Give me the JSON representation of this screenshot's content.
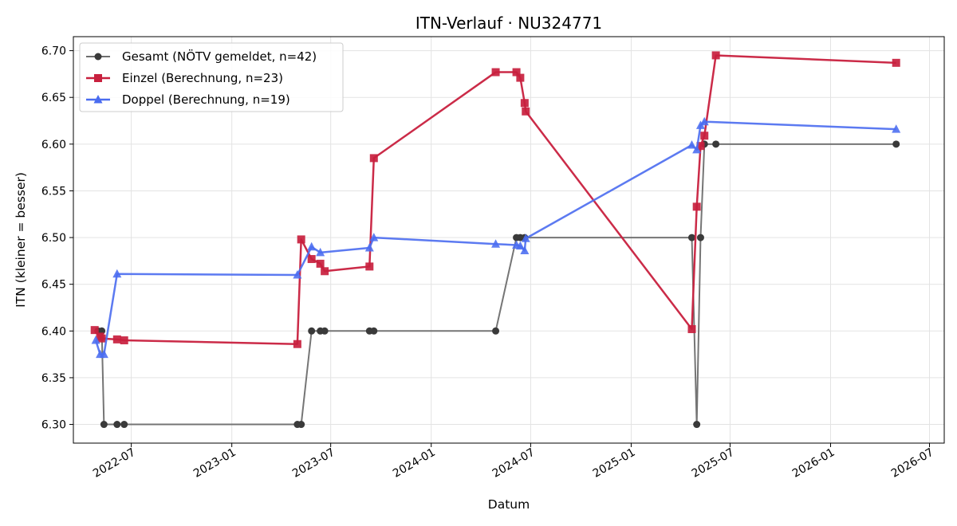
{
  "chart_data": {
    "type": "line",
    "title": "ITN-Verlauf · NU324771",
    "xlabel": "Datum",
    "ylabel": "ITN  (kleiner = besser)",
    "x_type": "date",
    "xlim": [
      "2022-03-17",
      "2026-07-28"
    ],
    "ylim": [
      6.28,
      6.715
    ],
    "x_ticks": [
      {
        "date": "2022-07-01",
        "label": "2022-07"
      },
      {
        "date": "2023-01-01",
        "label": "2023-01"
      },
      {
        "date": "2023-07-01",
        "label": "2023-07"
      },
      {
        "date": "2024-01-01",
        "label": "2024-01"
      },
      {
        "date": "2024-07-01",
        "label": "2024-07"
      },
      {
        "date": "2025-01-01",
        "label": "2025-01"
      },
      {
        "date": "2025-07-01",
        "label": "2025-07"
      },
      {
        "date": "2026-01-01",
        "label": "2026-01"
      },
      {
        "date": "2026-07-01",
        "label": "2026-07"
      }
    ],
    "y_ticks": [
      6.3,
      6.35,
      6.4,
      6.45,
      6.5,
      6.55,
      6.6,
      6.65,
      6.7
    ],
    "grid": true,
    "legend_position": "top-left",
    "series": [
      {
        "name": "Gesamt (NÖTV gemeldet, n=42)",
        "color": "#6e6e6e",
        "marker": "circle",
        "points": [
          [
            "2022-05-01",
            6.4
          ],
          [
            "2022-05-08",
            6.4
          ],
          [
            "2022-05-12",
            6.3
          ],
          [
            "2022-06-05",
            6.3
          ],
          [
            "2022-06-18",
            6.3
          ],
          [
            "2023-05-01",
            6.3
          ],
          [
            "2023-05-08",
            6.3
          ],
          [
            "2023-05-27",
            6.4
          ],
          [
            "2023-06-12",
            6.4
          ],
          [
            "2023-06-20",
            6.4
          ],
          [
            "2023-09-10",
            6.4
          ],
          [
            "2023-09-18",
            6.4
          ],
          [
            "2024-04-28",
            6.4
          ],
          [
            "2024-06-05",
            6.5
          ],
          [
            "2024-06-12",
            6.5
          ],
          [
            "2024-06-20",
            6.5
          ],
          [
            "2025-04-22",
            6.5
          ],
          [
            "2025-05-01",
            6.3
          ],
          [
            "2025-05-08",
            6.5
          ],
          [
            "2025-05-15",
            6.6
          ],
          [
            "2025-06-05",
            6.6
          ],
          [
            "2026-05-01",
            6.6
          ]
        ]
      },
      {
        "name": "Einzel (Berechnung, n=23)",
        "color": "#c8203e",
        "marker": "square",
        "points": [
          [
            "2022-04-25",
            6.401
          ],
          [
            "2022-05-05",
            6.394
          ],
          [
            "2022-05-08",
            6.392
          ],
          [
            "2022-06-05",
            6.391
          ],
          [
            "2022-06-18",
            6.39
          ],
          [
            "2023-05-01",
            6.386
          ],
          [
            "2023-05-08",
            6.498
          ],
          [
            "2023-05-27",
            6.477
          ],
          [
            "2023-06-12",
            6.472
          ],
          [
            "2023-06-20",
            6.464
          ],
          [
            "2023-09-10",
            6.469
          ],
          [
            "2023-09-18",
            6.585
          ],
          [
            "2024-04-28",
            6.677
          ],
          [
            "2024-06-05",
            6.677
          ],
          [
            "2024-06-12",
            6.671
          ],
          [
            "2024-06-20",
            6.644
          ],
          [
            "2024-06-22",
            6.635
          ],
          [
            "2025-04-22",
            6.402
          ],
          [
            "2025-05-01",
            6.533
          ],
          [
            "2025-05-08",
            6.598
          ],
          [
            "2025-05-15",
            6.609
          ],
          [
            "2025-06-05",
            6.695
          ],
          [
            "2026-05-01",
            6.687
          ]
        ]
      },
      {
        "name": "Doppel (Berechnung, n=19)",
        "color": "#4a6cf0",
        "marker": "triangle",
        "points": [
          [
            "2022-04-27",
            6.39
          ],
          [
            "2022-05-05",
            6.375
          ],
          [
            "2022-05-12",
            6.375
          ],
          [
            "2022-06-05",
            6.461
          ],
          [
            "2023-05-01",
            6.46
          ],
          [
            "2023-05-27",
            6.49
          ],
          [
            "2023-06-12",
            6.484
          ],
          [
            "2023-09-10",
            6.489
          ],
          [
            "2023-09-18",
            6.5
          ],
          [
            "2024-04-28",
            6.493
          ],
          [
            "2024-06-05",
            6.492
          ],
          [
            "2024-06-12",
            6.491
          ],
          [
            "2024-06-20",
            6.486
          ],
          [
            "2024-06-22",
            6.499
          ],
          [
            "2025-04-22",
            6.599
          ],
          [
            "2025-05-01",
            6.594
          ],
          [
            "2025-05-08",
            6.62
          ],
          [
            "2025-05-15",
            6.624
          ],
          [
            "2026-05-01",
            6.616
          ]
        ]
      }
    ]
  }
}
